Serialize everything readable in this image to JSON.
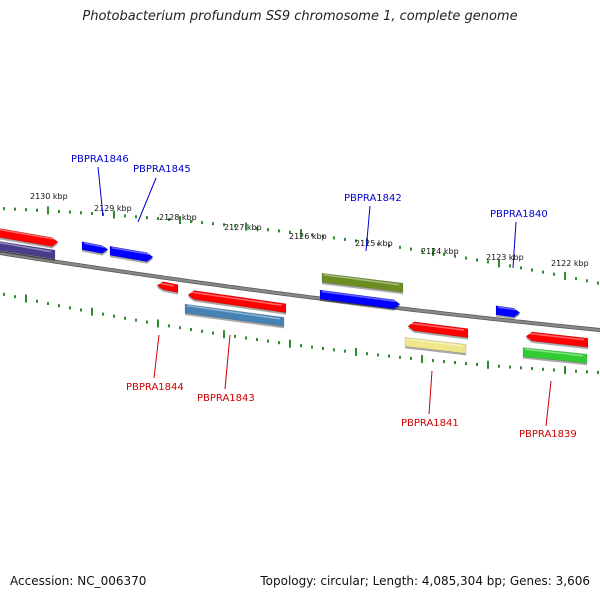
{
  "title": "Photobacterium profundum SS9 chromosome 1, complete genome",
  "footer": {
    "accession": "Accession: NC_006370",
    "stats": "Topology: circular; Length: 4,085,304 bp; Genes: 3,606"
  },
  "colors": {
    "backbone": "#888888",
    "scale_ticks": "#2e8b2e",
    "plus_label": "#0000cc",
    "minus_label": "#cc0000",
    "gene_blue": "#0000ff",
    "gene_red": "#ff0000",
    "gene_olive": "#6b8e23",
    "gene_steel": "#4682b4",
    "gene_navy": "#483d8b",
    "gene_khaki": "#f0e68c",
    "gene_green": "#32cd32"
  },
  "scale_labels": [
    "2130 kbp",
    "2129 kbp",
    "2128 kbp",
    "2127 kbp",
    "2126 kbp",
    "2125 kbp",
    "2124 kbp",
    "2123 kbp",
    "2122 kbp"
  ],
  "gene_labels_top": [
    "PBPRA1846",
    "PBPRA1845",
    "PBPRA1842",
    "PBPRA1840"
  ],
  "gene_labels_bottom": [
    "PBPRA1844",
    "PBPRA1843",
    "PBPRA1841",
    "PBPRA1839"
  ]
}
